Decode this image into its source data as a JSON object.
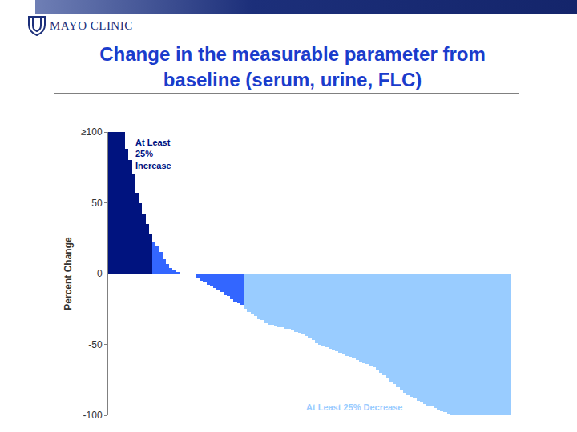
{
  "header": {
    "logo": "MAYO CLINIC"
  },
  "chart_data": {
    "type": "bar",
    "title": "Change in the measurable parameter from baseline (serum, urine, FLC)",
    "y_label": "Percent Change",
    "categories": [
      null,
      null,
      null,
      null,
      null,
      null,
      null,
      null,
      null,
      null,
      null,
      null,
      null,
      null,
      null,
      null,
      null,
      null,
      null,
      null,
      null,
      null,
      null,
      null,
      null,
      null,
      null,
      null,
      null,
      null,
      null,
      null,
      null,
      null,
      null,
      null,
      null,
      null,
      null,
      null,
      null,
      null,
      null,
      null,
      null,
      null,
      null,
      null,
      null,
      null,
      null,
      null,
      null,
      null,
      null,
      null,
      null,
      null,
      null,
      null,
      null,
      null,
      null,
      null,
      null,
      null,
      null,
      null,
      null,
      null,
      null,
      null,
      null,
      null,
      null,
      null,
      null,
      null,
      null,
      null,
      null,
      null,
      null,
      null,
      null,
      null,
      null,
      null,
      null,
      null,
      null,
      null,
      null,
      null,
      null,
      null,
      null,
      null,
      null,
      null,
      null,
      null,
      null,
      null,
      null,
      null,
      null,
      null,
      null,
      null,
      null,
      null,
      null,
      null,
      null,
      null,
      null,
      null,
      null
    ],
    "values": [
      100,
      100,
      100,
      100,
      100,
      88,
      80,
      70,
      57,
      50,
      42,
      35,
      28,
      22,
      20,
      15,
      10,
      7,
      4,
      2,
      1,
      0,
      0,
      0,
      0,
      0,
      -3,
      -5,
      -6,
      -8,
      -9,
      -10,
      -12,
      -13,
      -15,
      -16,
      -18,
      -20,
      -21,
      -22,
      -25,
      -27,
      -29,
      -30,
      -32,
      -33,
      -35,
      -36,
      -36,
      -37,
      -38,
      -38,
      -39,
      -39,
      -40,
      -41,
      -42,
      -43,
      -44,
      -45,
      -47,
      -49,
      -50,
      -51,
      -52,
      -53,
      -54,
      -55,
      -56,
      -57,
      -58,
      -59,
      -60,
      -61,
      -62,
      -63,
      -64,
      -65,
      -66,
      -68,
      -70,
      -72,
      -74,
      -76,
      -78,
      -80,
      -82,
      -84,
      -86,
      -87,
      -88,
      -90,
      -91,
      -92,
      -93,
      -94,
      -95,
      -96,
      -97,
      -98,
      -99,
      -100,
      -100,
      -100,
      -100,
      -100,
      -100,
      -100,
      -100,
      -100,
      -100,
      -100,
      -100,
      -100,
      -100,
      -100,
      -100,
      -100,
      -100
    ],
    "colors": [
      "#00137f",
      "#00137f",
      "#00137f",
      "#00137f",
      "#00137f",
      "#00137f",
      "#00137f",
      "#00137f",
      "#00137f",
      "#00137f",
      "#00137f",
      "#00137f",
      "#00137f",
      "#3366ff",
      "#3366ff",
      "#3366ff",
      "#3366ff",
      "#3366ff",
      "#3366ff",
      "#3366ff",
      "#3366ff",
      "#3366ff",
      "#3366ff",
      "#3366ff",
      "#3366ff",
      "#3366ff",
      "#3366ff",
      "#3366ff",
      "#3366ff",
      "#3366ff",
      "#3366ff",
      "#3366ff",
      "#3366ff",
      "#3366ff",
      "#3366ff",
      "#3366ff",
      "#3366ff",
      "#3366ff",
      "#3366ff",
      "#3366ff",
      "#99ccff",
      "#99ccff",
      "#99ccff",
      "#99ccff",
      "#99ccff",
      "#99ccff",
      "#99ccff",
      "#99ccff",
      "#99ccff",
      "#99ccff",
      "#99ccff",
      "#99ccff",
      "#99ccff",
      "#99ccff",
      "#99ccff",
      "#99ccff",
      "#99ccff",
      "#99ccff",
      "#99ccff",
      "#99ccff",
      "#99ccff",
      "#99ccff",
      "#99ccff",
      "#99ccff",
      "#99ccff",
      "#99ccff",
      "#99ccff",
      "#99ccff",
      "#99ccff",
      "#99ccff",
      "#99ccff",
      "#99ccff",
      "#99ccff",
      "#99ccff",
      "#99ccff",
      "#99ccff",
      "#99ccff",
      "#99ccff",
      "#99ccff",
      "#99ccff",
      "#99ccff",
      "#99ccff",
      "#99ccff",
      "#99ccff",
      "#99ccff",
      "#99ccff",
      "#99ccff",
      "#99ccff",
      "#99ccff",
      "#99ccff",
      "#99ccff",
      "#99ccff",
      "#99ccff",
      "#99ccff",
      "#99ccff",
      "#99ccff",
      "#99ccff",
      "#99ccff",
      "#99ccff",
      "#99ccff",
      "#99ccff",
      "#99ccff",
      "#99ccff",
      "#99ccff",
      "#99ccff",
      "#99ccff",
      "#99ccff",
      "#99ccff",
      "#99ccff",
      "#99ccff",
      "#99ccff",
      "#99ccff",
      "#99ccff",
      "#99ccff",
      "#99ccff",
      "#99ccff",
      "#99ccff",
      "#99ccff",
      "#99ccff"
    ],
    "ylim": [
      -100,
      100
    ],
    "yticks": [
      {
        "value": 100,
        "label": "≥100"
      },
      50,
      0,
      -50,
      -100
    ],
    "grid": false,
    "tick_labels": "y",
    "annotations": [
      {
        "text": [
          "At Least",
          "25%",
          "Increase"
        ],
        "color": "#00137f"
      },
      {
        "text": [
          "At Least 25% Decrease"
        ],
        "color": "#99ccff"
      }
    ]
  }
}
